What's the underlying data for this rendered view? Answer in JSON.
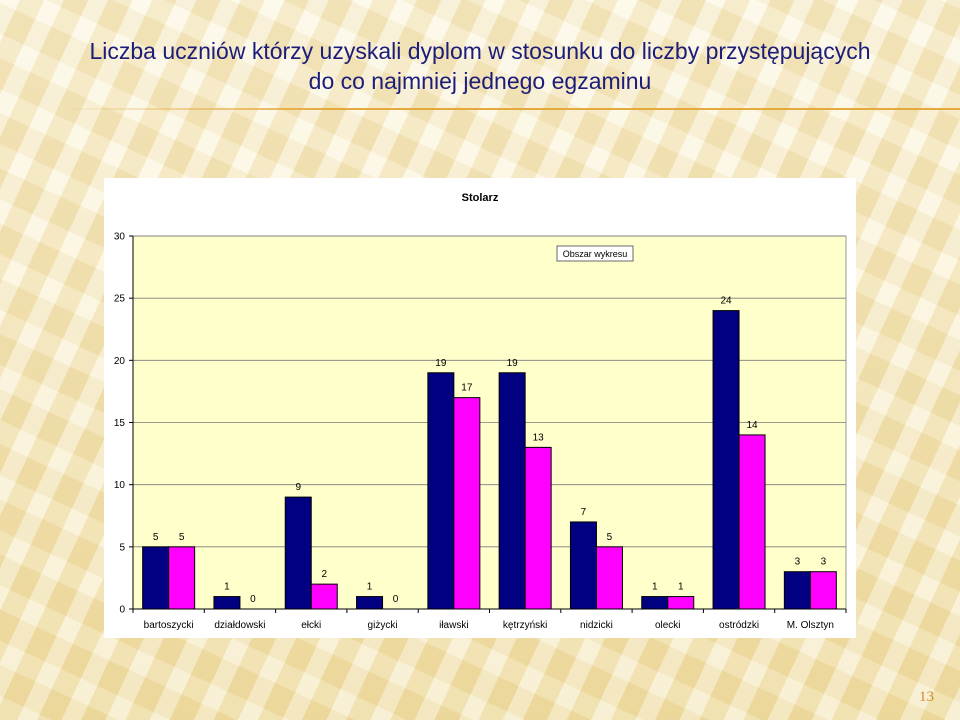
{
  "slide": {
    "title_line1": "Liczba uczniów którzy uzyskali dyplom w stosunku do liczby przystępujących",
    "title_line2": "do co najmniej jednego egzaminu",
    "page_number": "13"
  },
  "colors": {
    "series1": "#000080",
    "series2": "#ff00ff",
    "plot_bg": "#ffffcc",
    "title_text": "#1c1c7a",
    "accent": "#e5a93e"
  },
  "chart_data": {
    "type": "bar",
    "title": "Stolarz",
    "tooltip": "Obszar wykresu",
    "categories": [
      "bartoszycki",
      "działdowski",
      "ełcki",
      "giżycki",
      "iławski",
      "kętrzyński",
      "nidzicki",
      "olecki",
      "ostródzki",
      "M. Olsztyn"
    ],
    "series": [
      {
        "values": [
          5,
          1,
          9,
          1,
          19,
          19,
          7,
          1,
          24,
          3
        ]
      },
      {
        "values": [
          5,
          0,
          2,
          0,
          17,
          13,
          5,
          1,
          14,
          3
        ]
      }
    ],
    "ylim": [
      0,
      30
    ],
    "yticks": [
      0,
      5,
      10,
      15,
      20,
      25,
      30
    ],
    "grid": true,
    "legend": "none"
  }
}
